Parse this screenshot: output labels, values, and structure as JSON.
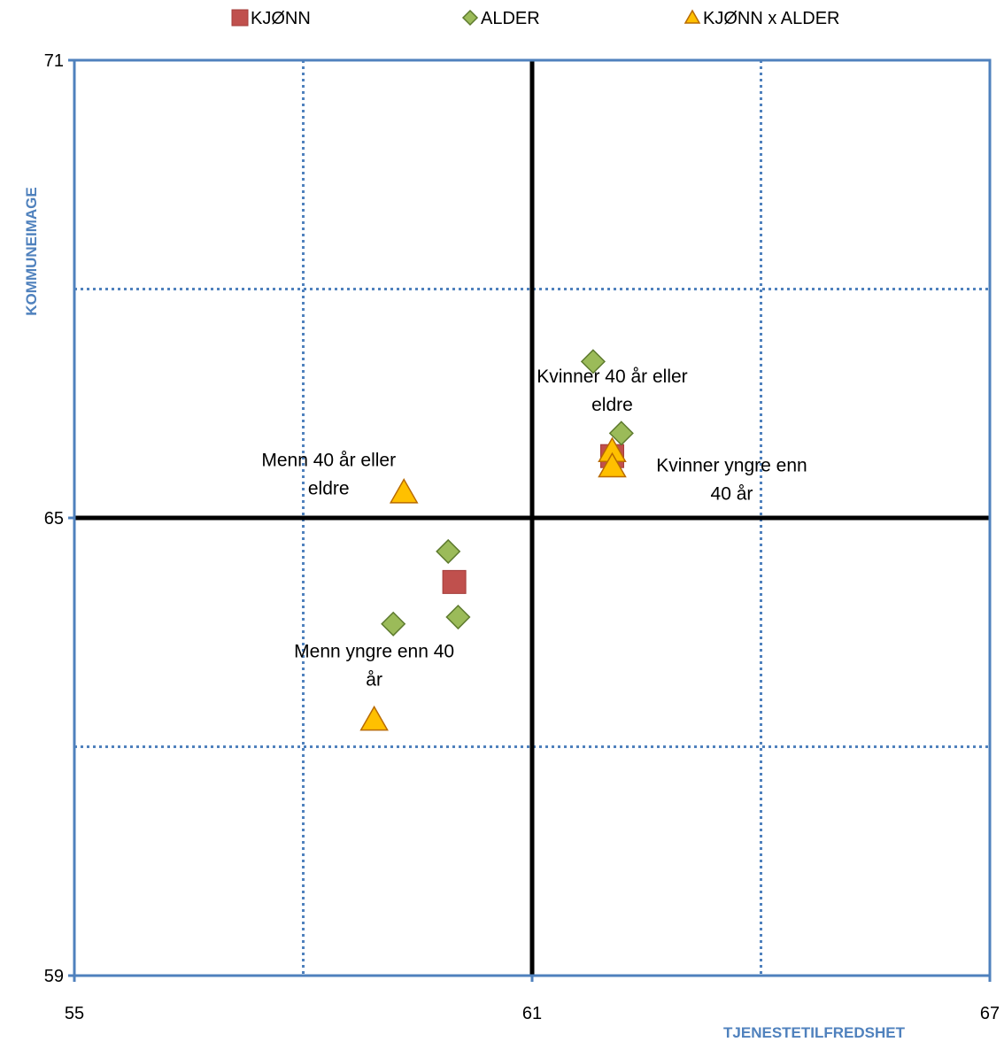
{
  "chart_data": {
    "type": "scatter",
    "xlabel": "TJENESTETILFREDSHET",
    "ylabel": "KOMMUNEIMAGE",
    "xlim": [
      55,
      67
    ],
    "ylim": [
      59,
      71
    ],
    "x_tick_labels": [
      "55",
      "61",
      "67"
    ],
    "y_tick_labels": [
      "71",
      "65",
      "59"
    ],
    "grid": true,
    "reference_lines": {
      "x": 61,
      "y": 65
    },
    "legend_position": "top",
    "series": [
      {
        "name": "KJØNN",
        "marker": "square",
        "color": "#c0504d",
        "points": [
          {
            "x": 62.05,
            "y": 65.81
          },
          {
            "x": 59.98,
            "y": 64.16
          }
        ]
      },
      {
        "name": "ALDER",
        "marker": "diamond",
        "color": "#9bbb59",
        "points": [
          {
            "x": 61.8,
            "y": 67.05
          },
          {
            "x": 62.17,
            "y": 66.11
          },
          {
            "x": 59.9,
            "y": 64.56
          },
          {
            "x": 59.18,
            "y": 63.61
          },
          {
            "x": 60.03,
            "y": 63.7
          }
        ]
      },
      {
        "name": "KJØNN x ALDER",
        "marker": "triangle",
        "color": "#ffc000",
        "points": [
          {
            "x": 62.05,
            "y": 65.87,
            "label": "Kvinner 40 år eller eldre",
            "label_lines": [
              "Kvinner 40 år eller",
              "eldre"
            ]
          },
          {
            "x": 62.05,
            "y": 65.67,
            "label": "Kvinner yngre enn 40 år",
            "label_lines": [
              "Kvinner yngre enn",
              "40 år"
            ]
          },
          {
            "x": 59.32,
            "y": 65.33,
            "label": "Menn 40 år eller eldre",
            "label_lines": [
              "Menn 40 år eller",
              "eldre"
            ]
          },
          {
            "x": 58.93,
            "y": 62.35,
            "label": "Menn yngre enn 40 år",
            "label_lines": [
              "Menn yngre enn 40",
              "år"
            ]
          }
        ]
      }
    ]
  }
}
